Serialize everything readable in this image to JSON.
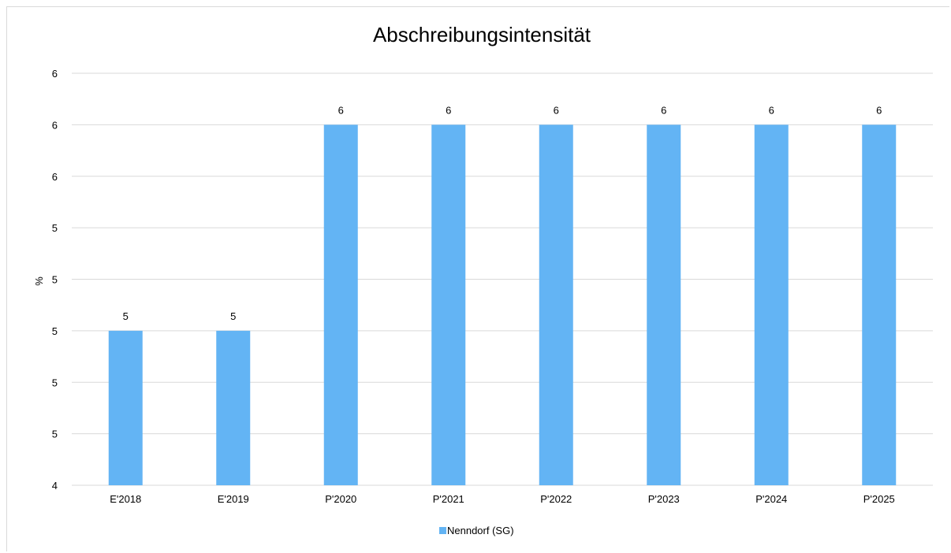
{
  "chart_data": {
    "type": "bar",
    "title": "Abschreibungsintensität",
    "xlabel": "",
    "ylabel": "%",
    "categories": [
      "E'2018",
      "E'2019",
      "P'2020",
      "P'2021",
      "P'2022",
      "P'2023",
      "P'2024",
      "P'2025"
    ],
    "series": [
      {
        "name": "Nenndorf (SG)",
        "values": [
          5.0,
          5.0,
          5.8,
          5.8,
          5.8,
          5.8,
          5.8,
          5.8
        ],
        "data_labels": [
          "5",
          "5",
          "6",
          "6",
          "6",
          "6",
          "6",
          "6"
        ],
        "color": "#63b4f4"
      }
    ],
    "ylim": [
      4.4,
      6.0
    ],
    "yticks": [
      4.4,
      4.6,
      4.8,
      5.0,
      5.2,
      5.4,
      5.6,
      5.8,
      6.0
    ],
    "ytick_labels": [
      "4",
      "5",
      "5",
      "5",
      "5",
      "5",
      "6",
      "6",
      "6"
    ],
    "grid": true,
    "gridline_color": "#d9d9d9",
    "legend_position": "bottom"
  }
}
